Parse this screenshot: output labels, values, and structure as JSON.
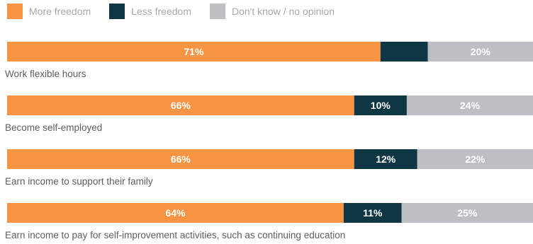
{
  "chart_data": {
    "type": "bar",
    "orientation": "horizontal",
    "stacked": true,
    "xlim": [
      0,
      100
    ],
    "categories": [
      "Work flexible hours",
      "Become self-employed",
      "Earn income to support their family",
      "Earn income to pay for self-improvement activities, such as continuing education"
    ],
    "series": [
      {
        "name": "More freedom",
        "color": "#f79443",
        "values": [
          71,
          66,
          66,
          64
        ],
        "labels": [
          "71%",
          "66%",
          "66%",
          "64%"
        ]
      },
      {
        "name": "Less freedom",
        "color": "#0f3743",
        "values": [
          9,
          10,
          12,
          11
        ],
        "labels": [
          "",
          "10%",
          "12%",
          "11%"
        ]
      },
      {
        "name": "Don't know / no opinion",
        "color": "#bdbfc2",
        "values": [
          20,
          24,
          22,
          25
        ],
        "labels": [
          "20%",
          "24%",
          "22%",
          "25%"
        ]
      }
    ],
    "legend_position": "top-left",
    "grid": false
  }
}
